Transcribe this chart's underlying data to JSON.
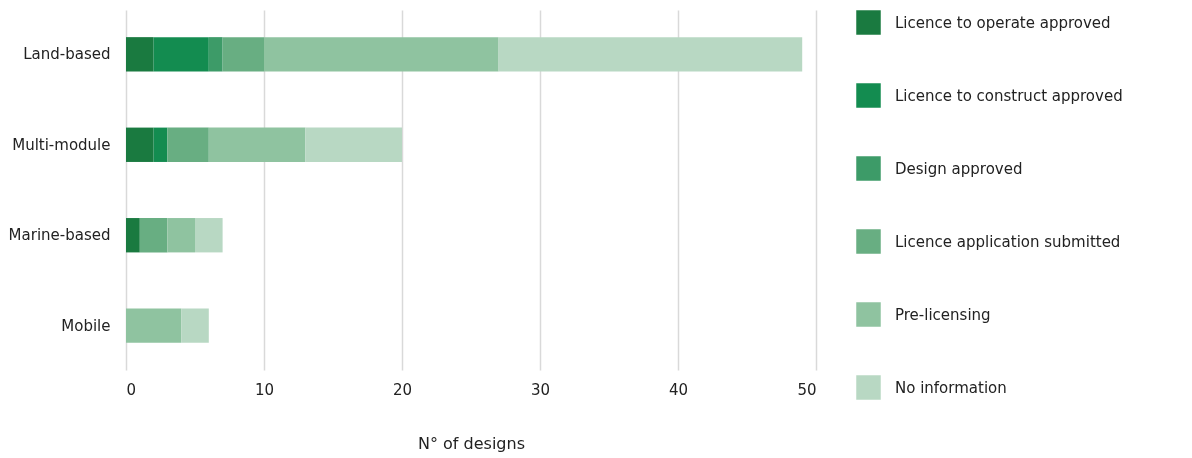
{
  "chart_data": {
    "type": "bar",
    "orientation": "horizontal",
    "stacked": true,
    "xlabel": "N° of designs",
    "categories": [
      "Land-based",
      "Multi-module",
      "Marine-based",
      "Mobile"
    ],
    "series": [
      {
        "name": "Licence to operate approved",
        "color": "#1a7a40",
        "values": [
          2,
          2,
          1,
          0
        ]
      },
      {
        "name": "Licence to construct approved",
        "color": "#138c50",
        "values": [
          4,
          1,
          0,
          0
        ]
      },
      {
        "name": "Design approved",
        "color": "#3d9b68",
        "values": [
          1,
          0,
          0,
          0
        ]
      },
      {
        "name": "Licence application submitted",
        "color": "#68ae82",
        "values": [
          3,
          3,
          2,
          0
        ]
      },
      {
        "name": "Pre-licensing",
        "color": "#8fc3a0",
        "values": [
          17,
          7,
          2,
          4
        ]
      },
      {
        "name": "No information",
        "color": "#b8d8c3",
        "values": [
          22,
          7,
          2,
          2
        ]
      }
    ],
    "xlim": [
      0,
      50
    ],
    "xticks": [
      0,
      10,
      20,
      30,
      40,
      50
    ],
    "grid": "x",
    "legend": "right"
  }
}
